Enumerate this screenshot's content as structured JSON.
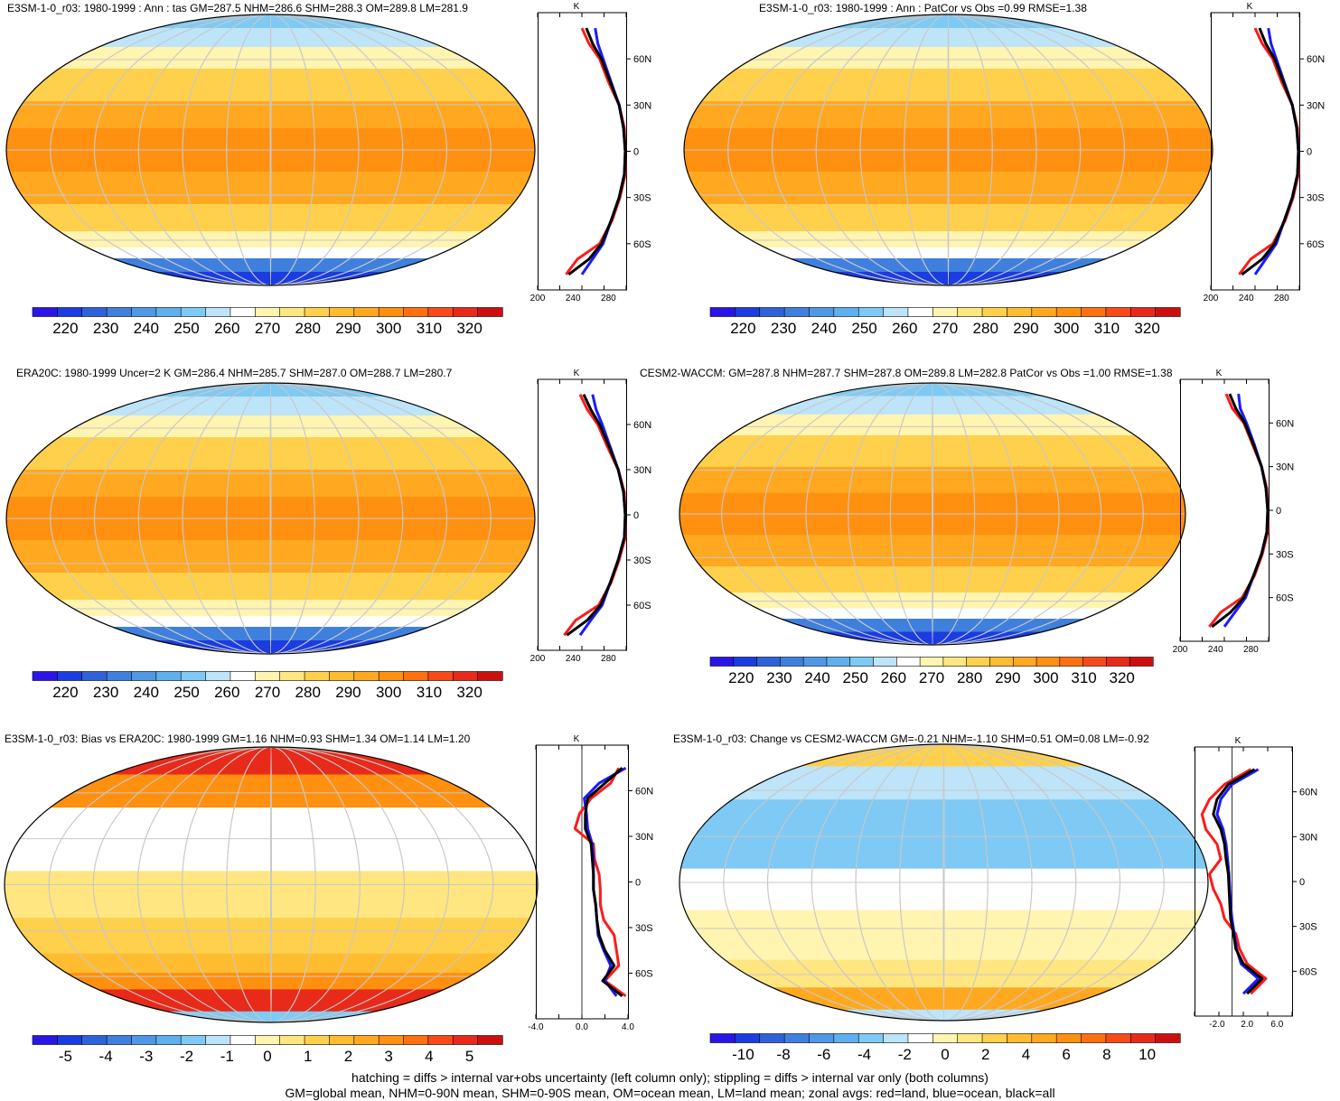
{
  "colors": {
    "scale": [
      "#2a15e6",
      "#1b3ce0",
      "#2f62d8",
      "#3f80de",
      "#4f98e6",
      "#5fb0ee",
      "#7ecaf4",
      "#bde4f8",
      "#ffffff",
      "#fff4b0",
      "#ffe680",
      "#ffd04c",
      "#ffbc30",
      "#ffa820",
      "#ff9010",
      "#ff7010",
      "#f84a18",
      "#e82a1a",
      "#cc1010"
    ],
    "zonal_land": "#ff1a1a",
    "zonal_ocean": "#1a1aff",
    "zonal_all": "#000000",
    "graticule": "#c8c8c8"
  },
  "footnote": {
    "line1": "hatching = diffs > internal var+obs uncertainty (left column only); stippling = diffs > internal var only (both columns)",
    "line2": "GM=global mean, NHM=0-90N mean, SHM=0-90S mean, OM=ocean mean, LM=land mean; zonal avgs: red=land, blue=ocean, black=all"
  },
  "chart_data": [
    {
      "type": "heatmap",
      "title": "E3SM-1-0_r03: 1980-1999 : Ann : tas GM=287.5 NHM=286.6 SHM=288.3 OM=289.8 LM=281.9",
      "colorbar_ticks": [
        "220",
        "230",
        "240",
        "250",
        "260",
        "270",
        "280",
        "290",
        "300",
        "310",
        "320"
      ],
      "zonal_unit": "K",
      "zonal_lat_ticks": [
        "60N",
        "30N",
        "0",
        "30S",
        "60S"
      ],
      "zonal_x_ticks": [
        "200",
        "240",
        "280"
      ],
      "zonal_xlim": [
        200,
        300
      ],
      "zonal_profile": {
        "lat": [
          80,
          70,
          60,
          45,
          30,
          15,
          0,
          -15,
          -30,
          -45,
          -60,
          -70,
          -80
        ],
        "all": [
          255,
          262,
          272,
          282,
          292,
          297,
          299,
          298,
          292,
          283,
          272,
          258,
          235
        ],
        "ocean": [
          265,
          268,
          274,
          283,
          292,
          297,
          299,
          298,
          292,
          283,
          274,
          262,
          250
        ],
        "land": [
          250,
          258,
          270,
          280,
          292,
          298,
          299,
          299,
          293,
          284,
          270,
          245,
          232
        ]
      }
    },
    {
      "type": "heatmap",
      "title": "E3SM-1-0_r03: 1980-1999 : Ann : PatCor vs Obs =0.99 RMSE=1.38",
      "colorbar_ticks": [
        "220",
        "230",
        "240",
        "250",
        "260",
        "270",
        "280",
        "290",
        "300",
        "310",
        "320"
      ],
      "zonal_unit": "K",
      "zonal_lat_ticks": [
        "60N",
        "30N",
        "0",
        "30S",
        "60S"
      ],
      "zonal_x_ticks": [
        "200",
        "240",
        "280"
      ],
      "zonal_xlim": [
        200,
        300
      ],
      "zonal_profile": {
        "lat": [
          80,
          70,
          60,
          45,
          30,
          15,
          0,
          -15,
          -30,
          -45,
          -60,
          -70,
          -80
        ],
        "all": [
          255,
          262,
          272,
          282,
          292,
          297,
          299,
          298,
          292,
          283,
          272,
          258,
          235
        ],
        "ocean": [
          265,
          268,
          274,
          283,
          292,
          297,
          299,
          298,
          292,
          283,
          274,
          262,
          250
        ],
        "land": [
          250,
          258,
          270,
          280,
          292,
          298,
          299,
          299,
          293,
          284,
          270,
          245,
          232
        ]
      }
    },
    {
      "type": "heatmap",
      "title": "ERA20C: 1980-1999 Uncer=2 K GM=286.4 NHM=285.7 SHM=287.0 OM=288.7 LM=280.7",
      "colorbar_ticks": [
        "220",
        "230",
        "240",
        "250",
        "260",
        "270",
        "280",
        "290",
        "300",
        "310",
        "320"
      ],
      "zonal_unit": "K",
      "zonal_lat_ticks": [
        "60N",
        "30N",
        "0",
        "30S",
        "60S"
      ],
      "zonal_x_ticks": [
        "200",
        "240",
        "280"
      ],
      "zonal_xlim": [
        200,
        300
      ],
      "zonal_profile": {
        "lat": [
          80,
          70,
          60,
          45,
          30,
          15,
          0,
          -15,
          -30,
          -45,
          -60,
          -70,
          -80
        ],
        "all": [
          252,
          260,
          270,
          281,
          291,
          297,
          299,
          298,
          291,
          282,
          271,
          256,
          233
        ],
        "ocean": [
          262,
          266,
          273,
          282,
          291,
          297,
          299,
          298,
          291,
          282,
          273,
          260,
          248
        ],
        "land": [
          248,
          256,
          268,
          279,
          291,
          298,
          299,
          299,
          292,
          283,
          269,
          243,
          230
        ]
      }
    },
    {
      "type": "heatmap",
      "title": "CESM2-WACCM: GM=287.8 NHM=287.7 SHM=287.8 OM=289.8 LM=282.8 PatCor vs Obs =1.00 RMSE=1.38",
      "colorbar_ticks": [
        "220",
        "230",
        "240",
        "250",
        "260",
        "270",
        "280",
        "290",
        "300",
        "310",
        "320"
      ],
      "zonal_unit": "K",
      "zonal_lat_ticks": [
        "60N",
        "30N",
        "0",
        "30S",
        "60S"
      ],
      "zonal_x_ticks": [
        "200",
        "240",
        "280"
      ],
      "zonal_xlim": [
        200,
        300
      ],
      "zonal_profile": {
        "lat": [
          80,
          70,
          60,
          45,
          30,
          15,
          0,
          -15,
          -30,
          -45,
          -60,
          -70,
          -80
        ],
        "all": [
          256,
          263,
          273,
          283,
          292,
          297,
          299,
          298,
          292,
          283,
          272,
          257,
          236
        ],
        "ocean": [
          266,
          268,
          275,
          284,
          292,
          297,
          299,
          298,
          292,
          283,
          274,
          262,
          250
        ],
        "land": [
          252,
          259,
          272,
          282,
          292,
          298,
          299,
          299,
          293,
          284,
          270,
          246,
          233
        ]
      }
    },
    {
      "type": "heatmap",
      "title": "E3SM-1-0_r03: Bias vs ERA20C: 1980-1999 GM=1.16 NHM=0.93 SHM=1.34 OM=1.14 LM=1.20",
      "colorbar_ticks": [
        "-5",
        "-4",
        "-3",
        "-2",
        "-1",
        "0",
        "1",
        "2",
        "3",
        "4",
        "5"
      ],
      "zonal_unit": "K",
      "zonal_lat_ticks": [
        "60N",
        "30N",
        "0",
        "30S",
        "60S"
      ],
      "zonal_x_ticks": [
        "-4.0",
        "0.0",
        "4.0"
      ],
      "zonal_xlim": [
        -4,
        4
      ],
      "zonal_profile": {
        "lat": [
          75,
          65,
          55,
          45,
          35,
          25,
          15,
          5,
          -5,
          -15,
          -25,
          -35,
          -45,
          -55,
          -65,
          -75
        ],
        "all": [
          3.5,
          2.0,
          0.5,
          0.3,
          0.3,
          0.8,
          0.9,
          1.0,
          1.0,
          1.2,
          1.3,
          1.5,
          2.0,
          2.8,
          1.8,
          3.5
        ],
        "ocean": [
          3.8,
          1.5,
          0.2,
          0.4,
          0.5,
          0.9,
          1.0,
          1.0,
          1.0,
          1.2,
          1.3,
          1.4,
          1.9,
          2.5,
          2.0,
          3.0
        ],
        "land": [
          3.2,
          2.5,
          0.8,
          -0.2,
          -0.6,
          1.0,
          1.1,
          1.5,
          1.6,
          1.6,
          1.9,
          2.8,
          3.0,
          3.2,
          2.0,
          3.8
        ]
      }
    },
    {
      "type": "heatmap",
      "title": "E3SM-1-0_r03: Change vs CESM2-WACCM GM=-0.21 NHM=-1.10 SHM=0.51 OM=0.08 LM=-0.92",
      "colorbar_ticks": [
        "-10",
        "-8",
        "-6",
        "-4",
        "-2",
        "0",
        "2",
        "4",
        "6",
        "8",
        "10"
      ],
      "zonal_unit": "K",
      "zonal_lat_ticks": [
        "60N",
        "30N",
        "0",
        "30S",
        "60S"
      ],
      "zonal_x_ticks": [
        "-2.0",
        "2.0",
        "6.0"
      ],
      "zonal_xlim": [
        -5,
        8
      ],
      "zonal_profile": {
        "lat": [
          75,
          65,
          55,
          45,
          35,
          25,
          15,
          5,
          -5,
          -15,
          -25,
          -35,
          -45,
          -55,
          -65,
          -75
        ],
        "all": [
          3.0,
          -0.5,
          -2.0,
          -2.5,
          -1.5,
          -1.0,
          -0.8,
          -0.5,
          -0.4,
          -0.3,
          -0.2,
          0.2,
          0.5,
          1.5,
          4.0,
          2.0
        ],
        "ocean": [
          3.5,
          0.0,
          -1.5,
          -2.0,
          -1.2,
          -0.8,
          -0.6,
          -0.4,
          -0.3,
          -0.2,
          0.0,
          0.3,
          0.6,
          1.2,
          3.5,
          1.5
        ],
        "land": [
          2.5,
          -1.0,
          -3.0,
          -4.0,
          -3.5,
          -2.0,
          -1.5,
          -3.0,
          -2.5,
          -1.5,
          -1.0,
          0.5,
          1.0,
          2.0,
          4.5,
          2.5
        ]
      }
    }
  ]
}
